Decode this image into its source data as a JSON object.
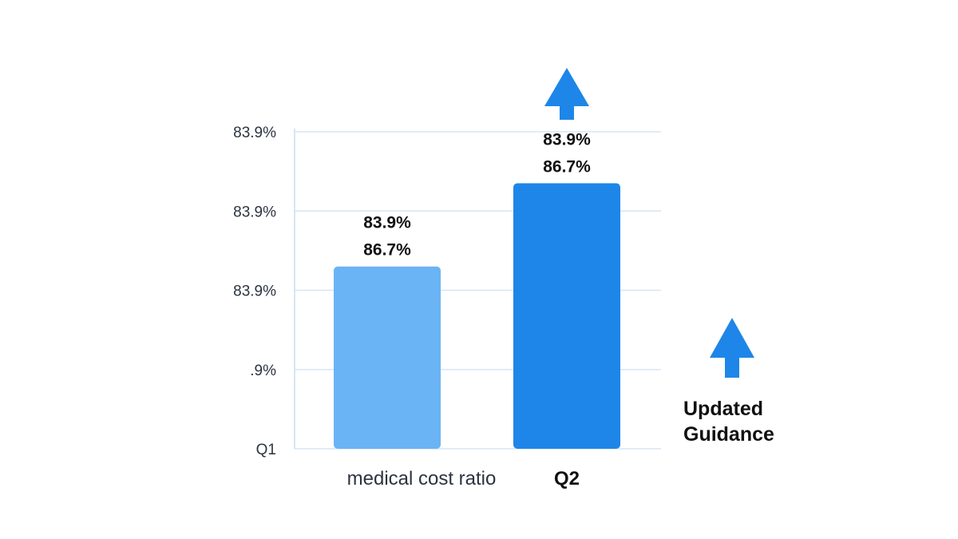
{
  "chart_data": {
    "type": "bar",
    "categories": [
      "medical cost ratio",
      "Q2"
    ],
    "values": [
      2.3,
      3.35
    ],
    "ylim": [
      0,
      4
    ],
    "y_tick_labels": [
      "Q1",
      ".9%",
      "83.9%",
      "83.9%",
      "83.9%"
    ],
    "data_labels": [
      [
        "83.9%",
        "86.7%"
      ],
      [
        "83.9%",
        "86.7%"
      ]
    ],
    "bar_colors": [
      "#6ab4f5",
      "#1e86e8"
    ],
    "grid": true,
    "annotation": {
      "lines": [
        "Updated",
        "Guidance"
      ],
      "icon": "arrow-up-icon",
      "color": "#1e86e8"
    },
    "bar_arrow_icon": "arrow-up-icon"
  }
}
